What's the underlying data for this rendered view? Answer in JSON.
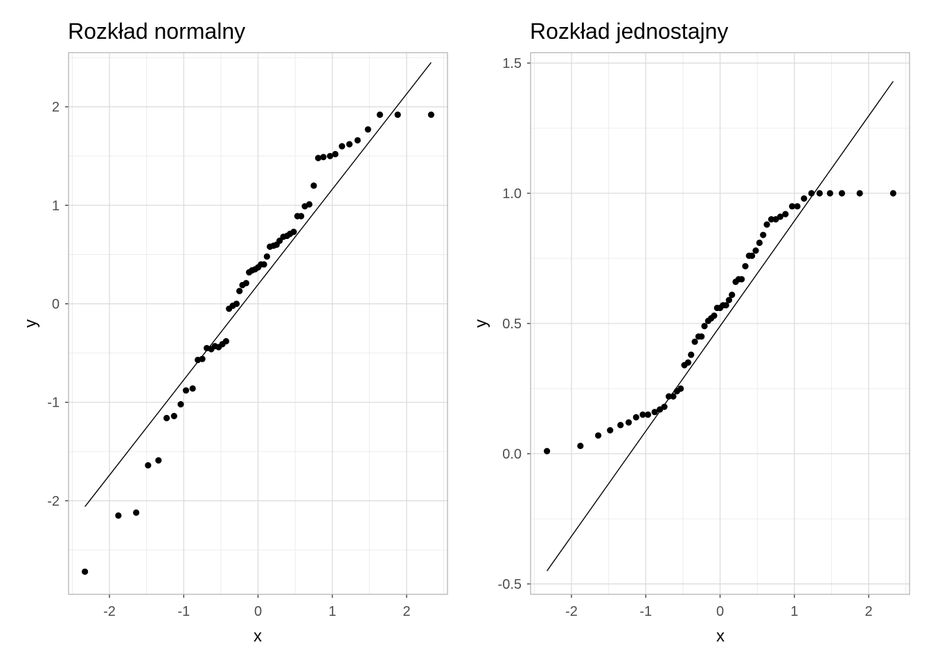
{
  "chart_data": [
    {
      "type": "scatter",
      "title": "Rozkład normalny",
      "xlabel": "x",
      "ylabel": "y",
      "xlim": [
        -2.55,
        2.55
      ],
      "ylim": [
        -2.95,
        2.55
      ],
      "xticks": [
        -2,
        -1,
        0,
        1,
        2
      ],
      "xtick_labels": [
        "-2",
        "-1",
        "0",
        "1",
        "2"
      ],
      "yticks": [
        -2,
        -1,
        0,
        1,
        2
      ],
      "ytick_labels": [
        "-2",
        "-1",
        "0",
        "1",
        "2"
      ],
      "grid": true,
      "reference_line": {
        "x": [
          -2.33,
          2.33
        ],
        "y": [
          -2.06,
          2.45
        ]
      },
      "points": {
        "x": [
          -2.33,
          -1.88,
          -1.64,
          -1.48,
          -1.34,
          -1.23,
          -1.13,
          -1.04,
          -0.97,
          -0.88,
          -0.81,
          -0.75,
          -0.69,
          -0.63,
          -0.58,
          -0.53,
          -0.48,
          -0.43,
          -0.39,
          -0.34,
          -0.29,
          -0.25,
          -0.21,
          -0.16,
          -0.12,
          -0.08,
          -0.04,
          0.0,
          0.04,
          0.08,
          0.12,
          0.16,
          0.21,
          0.25,
          0.29,
          0.34,
          0.39,
          0.43,
          0.48,
          0.53,
          0.58,
          0.63,
          0.69,
          0.75,
          0.81,
          0.88,
          0.97,
          1.04,
          1.13,
          1.23,
          1.34,
          1.48,
          1.64,
          1.88,
          2.33
        ],
        "y": [
          -2.72,
          -2.15,
          -2.12,
          -1.64,
          -1.59,
          -1.16,
          -1.14,
          -1.02,
          -0.88,
          -0.86,
          -0.57,
          -0.56,
          -0.45,
          -0.46,
          -0.43,
          -0.44,
          -0.41,
          -0.38,
          -0.05,
          -0.02,
          0.0,
          0.13,
          0.19,
          0.21,
          0.32,
          0.34,
          0.35,
          0.37,
          0.4,
          0.4,
          0.48,
          0.58,
          0.59,
          0.6,
          0.64,
          0.68,
          0.69,
          0.71,
          0.73,
          0.89,
          0.89,
          0.99,
          1.01,
          1.2,
          1.48,
          1.49,
          1.5,
          1.52,
          1.6,
          1.62,
          1.66,
          1.77,
          1.92,
          1.92,
          1.92
        ]
      }
    },
    {
      "type": "scatter",
      "title": "Rozkład jednostajny",
      "xlabel": "x",
      "ylabel": "y",
      "xlim": [
        -2.55,
        2.55
      ],
      "ylim": [
        -0.54,
        1.54
      ],
      "xticks": [
        -2,
        -1,
        0,
        1,
        2
      ],
      "xtick_labels": [
        "-2",
        "-1",
        "0",
        "1",
        "2"
      ],
      "yticks": [
        -0.5,
        0.0,
        0.5,
        1.0,
        1.5
      ],
      "ytick_labels": [
        "-0.5",
        "0.0",
        "0.5",
        "1.0",
        "1.5"
      ],
      "grid": true,
      "reference_line": {
        "x": [
          -2.33,
          2.33
        ],
        "y": [
          -0.45,
          1.43
        ]
      },
      "points": {
        "x": [
          -2.33,
          -1.88,
          -1.64,
          -1.48,
          -1.34,
          -1.23,
          -1.13,
          -1.04,
          -0.97,
          -0.88,
          -0.81,
          -0.75,
          -0.69,
          -0.63,
          -0.58,
          -0.53,
          -0.48,
          -0.43,
          -0.39,
          -0.34,
          -0.29,
          -0.25,
          -0.21,
          -0.16,
          -0.12,
          -0.08,
          -0.04,
          0.0,
          0.04,
          0.08,
          0.12,
          0.16,
          0.21,
          0.25,
          0.29,
          0.34,
          0.39,
          0.43,
          0.48,
          0.53,
          0.58,
          0.63,
          0.69,
          0.75,
          0.81,
          0.88,
          0.97,
          1.04,
          1.13,
          1.23,
          1.34,
          1.48,
          1.64,
          1.88,
          2.33
        ],
        "y": [
          0.01,
          0.03,
          0.07,
          0.09,
          0.11,
          0.12,
          0.14,
          0.15,
          0.15,
          0.16,
          0.17,
          0.18,
          0.22,
          0.22,
          0.24,
          0.25,
          0.34,
          0.35,
          0.38,
          0.43,
          0.45,
          0.45,
          0.49,
          0.51,
          0.52,
          0.53,
          0.56,
          0.56,
          0.57,
          0.57,
          0.59,
          0.61,
          0.66,
          0.67,
          0.67,
          0.72,
          0.76,
          0.76,
          0.78,
          0.81,
          0.84,
          0.88,
          0.9,
          0.9,
          0.91,
          0.92,
          0.95,
          0.95,
          0.98,
          1.0,
          1.0,
          1.0,
          1.0,
          1.0,
          1.0
        ]
      }
    }
  ]
}
